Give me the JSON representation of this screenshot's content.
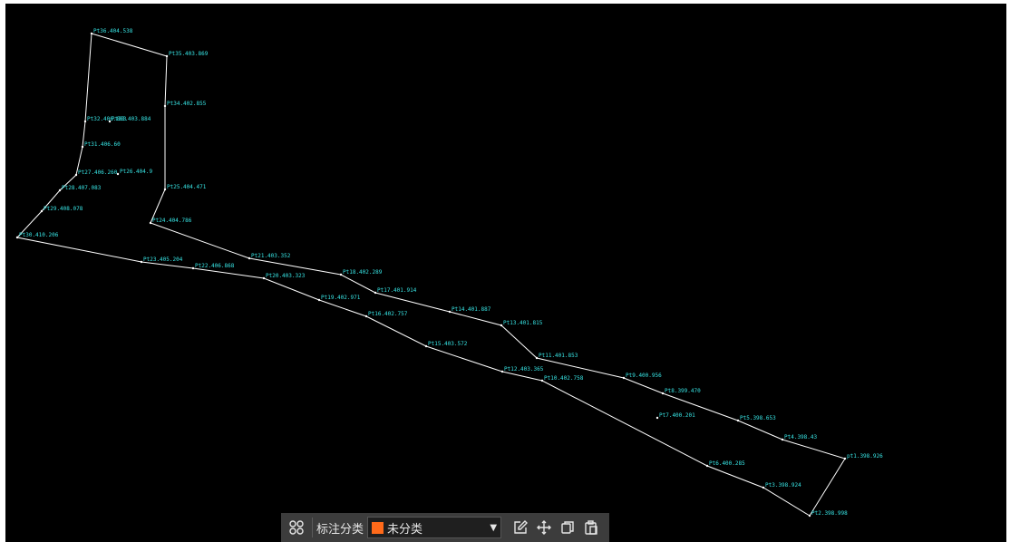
{
  "colors": {
    "line": "#ffffff",
    "label": "#38e6e6",
    "swatch": "#ff6a1a",
    "toolbar_bg": "#3c3c3c"
  },
  "toolbar": {
    "grid_icon": "apps-grid-icon",
    "class_label": "标注分类",
    "class_value": "未分类",
    "edit_icon": "edit-icon",
    "move_icon": "move-icon",
    "copy_icon": "copy-icon",
    "paste_icon": "paste-icon"
  },
  "points": [
    {
      "label": "Pt36.404.538"
    },
    {
      "label": "Pt35.403.869"
    },
    {
      "label": "Pt34.402.855"
    },
    {
      "label": "Pt32.406.883"
    },
    {
      "label": "Pt33.403.884"
    },
    {
      "label": "Pt31.406.60"
    },
    {
      "label": "Pt27.406.260"
    },
    {
      "label": "Pt26.404.9"
    },
    {
      "label": "Pt28.407.083"
    },
    {
      "label": "Pt25.404.471"
    },
    {
      "label": "Pt29.408.078"
    },
    {
      "label": "Pt24.404.786"
    },
    {
      "label": "Pt30.410.206"
    },
    {
      "label": "Pt21.403.352"
    },
    {
      "label": "Pt23.405.204"
    },
    {
      "label": "Pt22.406.868"
    },
    {
      "label": "Pt18.402.289"
    },
    {
      "label": "Pt20.403.323"
    },
    {
      "label": "Pt17.401.914"
    },
    {
      "label": "Pt19.402.971"
    },
    {
      "label": "Pt14.401.887"
    },
    {
      "label": "Pt16.402.757"
    },
    {
      "label": "Pt13.401.815"
    },
    {
      "label": "Pt15.403.572"
    },
    {
      "label": "Pt11.401.853"
    },
    {
      "label": "Pt12.403.365"
    },
    {
      "label": "Pt10.402.758"
    },
    {
      "label": "Pt9.400.956"
    },
    {
      "label": "Pt8.399.470"
    },
    {
      "label": "Pt7.400.201"
    },
    {
      "label": "Pt5.398.653"
    },
    {
      "label": "Pt4.398.43"
    },
    {
      "label": "pt1.398.926"
    },
    {
      "label": "Pt6.400.285"
    },
    {
      "label": "Pt3.398.924"
    },
    {
      "label": "Pt2.398.998"
    }
  ]
}
